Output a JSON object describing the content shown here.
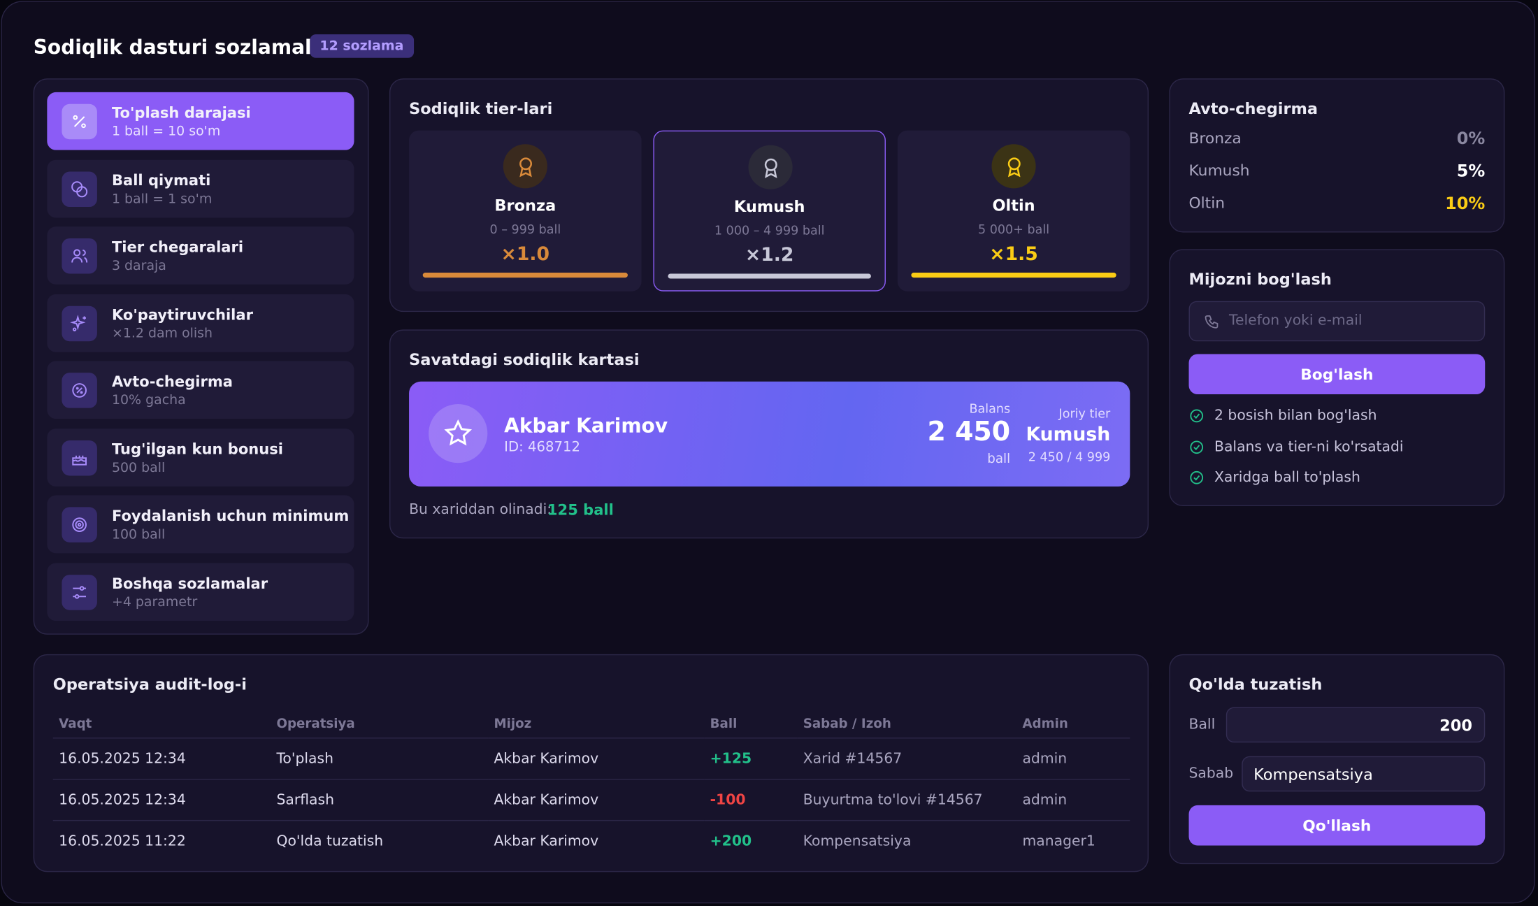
{
  "header": {
    "title": "Sodiqlik dasturi sozlamalari",
    "badge": "12 sozlama"
  },
  "sidebar": {
    "items": [
      {
        "title": "To'plash darajasi",
        "subtitle": "1 ball = 10 so'm"
      },
      {
        "title": "Ball qiymati",
        "subtitle": "1 ball = 1 so'm"
      },
      {
        "title": "Tier chegaralari",
        "subtitle": "3 daraja"
      },
      {
        "title": "Ko'paytiruvchilar",
        "subtitle": "×1.2 dam olish"
      },
      {
        "title": "Avto-chegirma",
        "subtitle": "10% gacha"
      },
      {
        "title": "Tug'ilgan kun bonusi",
        "subtitle": "500 ball"
      },
      {
        "title": "Foydalanish uchun minimum",
        "subtitle": "100 ball"
      },
      {
        "title": "Boshqa sozlamalar",
        "subtitle": "+4 parametr"
      }
    ]
  },
  "tiers": {
    "title": "Sodiqlik tier-lari",
    "items": [
      {
        "name": "Bronza",
        "range": "0 – 999 ball",
        "multiplier": "×1.0"
      },
      {
        "name": "Kumush",
        "range": "1 000 – 4 999 ball",
        "multiplier": "×1.2"
      },
      {
        "name": "Oltin",
        "range": "5 000+ ball",
        "multiplier": "×1.5"
      }
    ]
  },
  "card": {
    "title": "Savatdagi sodiqlik kartasi",
    "name": "Akbar Karimov",
    "id": "ID: 468712",
    "balance_label": "Balans",
    "balance": "2 450",
    "balance_unit": "ball",
    "tier_label": "Joriy tier",
    "tier": "Kumush",
    "progress": "2 450 / 4 999",
    "earn_label": "Bu xariddan olinadi:",
    "earn_value": "125 ball"
  },
  "auto_discount": {
    "title": "Avto-chegirma",
    "rows": [
      [
        "Bronza",
        "0%"
      ],
      [
        "Kumush",
        "5%"
      ],
      [
        "Oltin",
        "10%"
      ]
    ]
  },
  "link": {
    "title": "Mijozni bog'lash",
    "placeholder": "Telefon yoki e-mail",
    "button": "Bog'lash",
    "features": [
      "2 bosish bilan bog'lash",
      "Balans va tier-ni ko'rsatadi",
      "Xaridga ball to'plash"
    ]
  },
  "audit": {
    "title": "Operatsiya audit-log-i",
    "columns": [
      "Vaqt",
      "Operatsiya",
      "Mijoz",
      "Ball",
      "Sabab / Izoh",
      "Admin"
    ],
    "rows": [
      [
        "16.05.2025 12:34",
        "To'plash",
        "Akbar Karimov",
        "+125",
        "Xarid #14567",
        "admin"
      ],
      [
        "16.05.2025 12:34",
        "Sarflash",
        "Akbar Karimov",
        "-100",
        "Buyurtma to'lovi #14567",
        "admin"
      ],
      [
        "16.05.2025 11:22",
        "Qo'lda tuzatish",
        "Akbar Karimov",
        "+200",
        "Kompensatsiya",
        "manager1"
      ]
    ]
  },
  "manual": {
    "title": "Qo'lda tuzatish",
    "ball_label": "Ball",
    "ball_value": "200",
    "reason_label": "Sabab",
    "reason_value": "Kompensatsiya",
    "button": "Qo'llash"
  }
}
